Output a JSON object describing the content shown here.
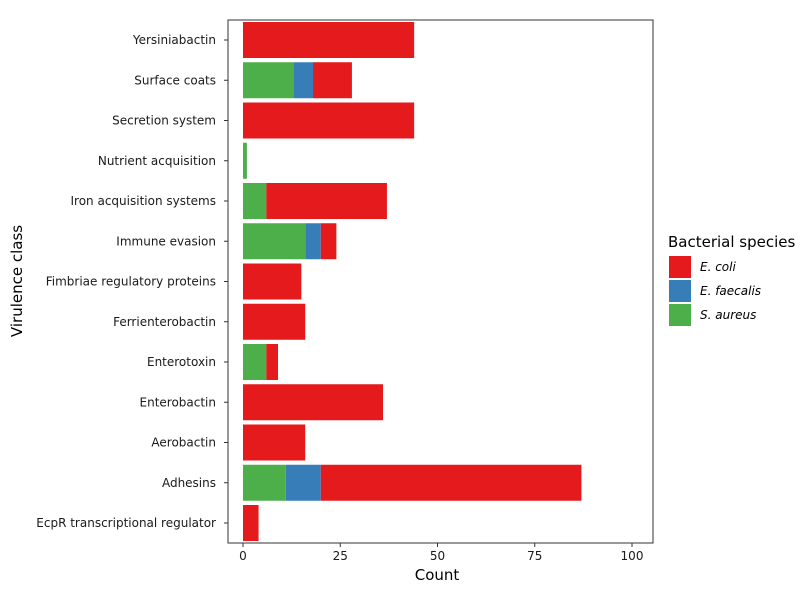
{
  "chart_data": {
    "type": "bar",
    "orientation": "horizontal",
    "stacked": true,
    "categories": [
      "Yersiniabactin",
      "Surface coats",
      "Secretion system",
      "Nutrient acquisition",
      "Iron acquisition systems",
      "Immune evasion",
      "Fimbriae regulatory proteins",
      "Ferrienterobactin",
      "Enterotoxin",
      "Enterobactin",
      "Aerobactin",
      "Adhesins",
      "EcpR transcriptional regulator"
    ],
    "series": [
      {
        "name": "S. aureus",
        "color": "#4daf4a",
        "values": [
          0,
          13,
          0,
          1,
          6,
          16,
          0,
          0,
          6,
          0,
          0,
          11,
          0
        ]
      },
      {
        "name": "E. faecalis",
        "color": "#377eb8",
        "values": [
          0,
          5,
          0,
          0,
          0,
          4,
          0,
          0,
          0,
          0,
          0,
          9,
          0
        ]
      },
      {
        "name": "E. coli",
        "color": "#e41a1c",
        "values": [
          44,
          10,
          44,
          0,
          31,
          4,
          15,
          16,
          3,
          36,
          16,
          67,
          4
        ]
      }
    ],
    "xlabel": "Count",
    "ylabel": "Virulence class",
    "xlim": [
      0,
      100
    ],
    "xticks": [
      0,
      25,
      50,
      75,
      100
    ],
    "grid": false,
    "legend": {
      "title": "Bacterial species",
      "placement": "right",
      "items": [
        "E. coli",
        "E. faecalis",
        "S. aureus"
      ]
    }
  }
}
